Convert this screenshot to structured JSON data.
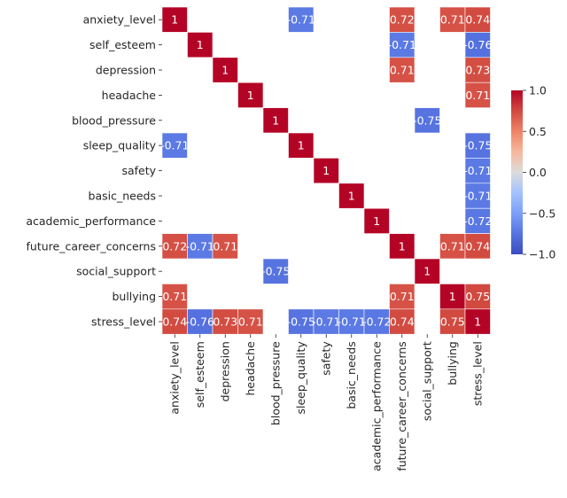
{
  "chart_data": {
    "type": "heatmap",
    "title": "",
    "xlabel": "",
    "ylabel": "",
    "labels": [
      "anxiety_level",
      "self_esteem",
      "depression",
      "headache",
      "blood_pressure",
      "sleep_quality",
      "safety",
      "basic_needs",
      "academic_performance",
      "future_career_concerns",
      "social_support",
      "bullying",
      "stress_level"
    ],
    "mask_rule": "only cells with |r| >= 0.7 shown",
    "cells": [
      {
        "row": 0,
        "col": 0,
        "value": 1,
        "text": "1"
      },
      {
        "row": 0,
        "col": 5,
        "value": -0.71,
        "text": "-0.71"
      },
      {
        "row": 0,
        "col": 9,
        "value": 0.72,
        "text": "0.72"
      },
      {
        "row": 0,
        "col": 11,
        "value": 0.71,
        "text": "0.71"
      },
      {
        "row": 0,
        "col": 12,
        "value": 0.74,
        "text": "0.74"
      },
      {
        "row": 1,
        "col": 1,
        "value": 1,
        "text": "1"
      },
      {
        "row": 1,
        "col": 9,
        "value": -0.71,
        "text": "-0.71"
      },
      {
        "row": 1,
        "col": 12,
        "value": -0.76,
        "text": "-0.76"
      },
      {
        "row": 2,
        "col": 2,
        "value": 1,
        "text": "1"
      },
      {
        "row": 2,
        "col": 9,
        "value": 0.71,
        "text": "0.71"
      },
      {
        "row": 2,
        "col": 12,
        "value": 0.73,
        "text": "0.73"
      },
      {
        "row": 3,
        "col": 3,
        "value": 1,
        "text": "1"
      },
      {
        "row": 3,
        "col": 12,
        "value": 0.71,
        "text": "0.71"
      },
      {
        "row": 4,
        "col": 4,
        "value": 1,
        "text": "1"
      },
      {
        "row": 4,
        "col": 10,
        "value": -0.75,
        "text": "-0.75"
      },
      {
        "row": 5,
        "col": 0,
        "value": -0.71,
        "text": "-0.71"
      },
      {
        "row": 5,
        "col": 5,
        "value": 1,
        "text": "1"
      },
      {
        "row": 5,
        "col": 12,
        "value": -0.75,
        "text": "-0.75"
      },
      {
        "row": 6,
        "col": 6,
        "value": 1,
        "text": "1"
      },
      {
        "row": 6,
        "col": 12,
        "value": -0.71,
        "text": "-0.71"
      },
      {
        "row": 7,
        "col": 7,
        "value": 1,
        "text": "1"
      },
      {
        "row": 7,
        "col": 12,
        "value": -0.71,
        "text": "-0.71"
      },
      {
        "row": 8,
        "col": 8,
        "value": 1,
        "text": "1"
      },
      {
        "row": 8,
        "col": 12,
        "value": -0.72,
        "text": "-0.72"
      },
      {
        "row": 9,
        "col": 0,
        "value": 0.72,
        "text": "0.72"
      },
      {
        "row": 9,
        "col": 1,
        "value": -0.71,
        "text": "-0.71"
      },
      {
        "row": 9,
        "col": 2,
        "value": 0.71,
        "text": "0.71"
      },
      {
        "row": 9,
        "col": 9,
        "value": 1,
        "text": "1"
      },
      {
        "row": 9,
        "col": 11,
        "value": 0.71,
        "text": "0.71"
      },
      {
        "row": 9,
        "col": 12,
        "value": 0.74,
        "text": "0.74"
      },
      {
        "row": 10,
        "col": 4,
        "value": -0.75,
        "text": "-0.75"
      },
      {
        "row": 10,
        "col": 10,
        "value": 1,
        "text": "1"
      },
      {
        "row": 11,
        "col": 0,
        "value": 0.71,
        "text": "0.71"
      },
      {
        "row": 11,
        "col": 9,
        "value": 0.71,
        "text": "0.71"
      },
      {
        "row": 11,
        "col": 11,
        "value": 1,
        "text": "1"
      },
      {
        "row": 11,
        "col": 12,
        "value": 0.75,
        "text": "0.75"
      },
      {
        "row": 12,
        "col": 0,
        "value": 0.74,
        "text": "0.74"
      },
      {
        "row": 12,
        "col": 1,
        "value": -0.76,
        "text": "-0.76"
      },
      {
        "row": 12,
        "col": 2,
        "value": 0.73,
        "text": "0.73"
      },
      {
        "row": 12,
        "col": 3,
        "value": 0.71,
        "text": "0.71"
      },
      {
        "row": 12,
        "col": 5,
        "value": -0.75,
        "text": "-0.75"
      },
      {
        "row": 12,
        "col": 6,
        "value": -0.71,
        "text": "-0.71"
      },
      {
        "row": 12,
        "col": 7,
        "value": -0.71,
        "text": "-0.71"
      },
      {
        "row": 12,
        "col": 8,
        "value": -0.72,
        "text": "-0.72"
      },
      {
        "row": 12,
        "col": 9,
        "value": 0.74,
        "text": "0.74"
      },
      {
        "row": 12,
        "col": 11,
        "value": 0.75,
        "text": "0.75"
      },
      {
        "row": 12,
        "col": 12,
        "value": 1,
        "text": "1"
      }
    ],
    "colorbar": {
      "colormap": "coolwarm",
      "vmin": -1.0,
      "vmax": 1.0,
      "ticks": [
        1.0,
        0.5,
        0.0,
        -0.5,
        -1.0
      ],
      "tick_labels": [
        "1.0",
        "0.5",
        "0.0",
        "−0.5",
        "−1.0"
      ]
    },
    "grid": false,
    "legend": "colorbar right"
  }
}
